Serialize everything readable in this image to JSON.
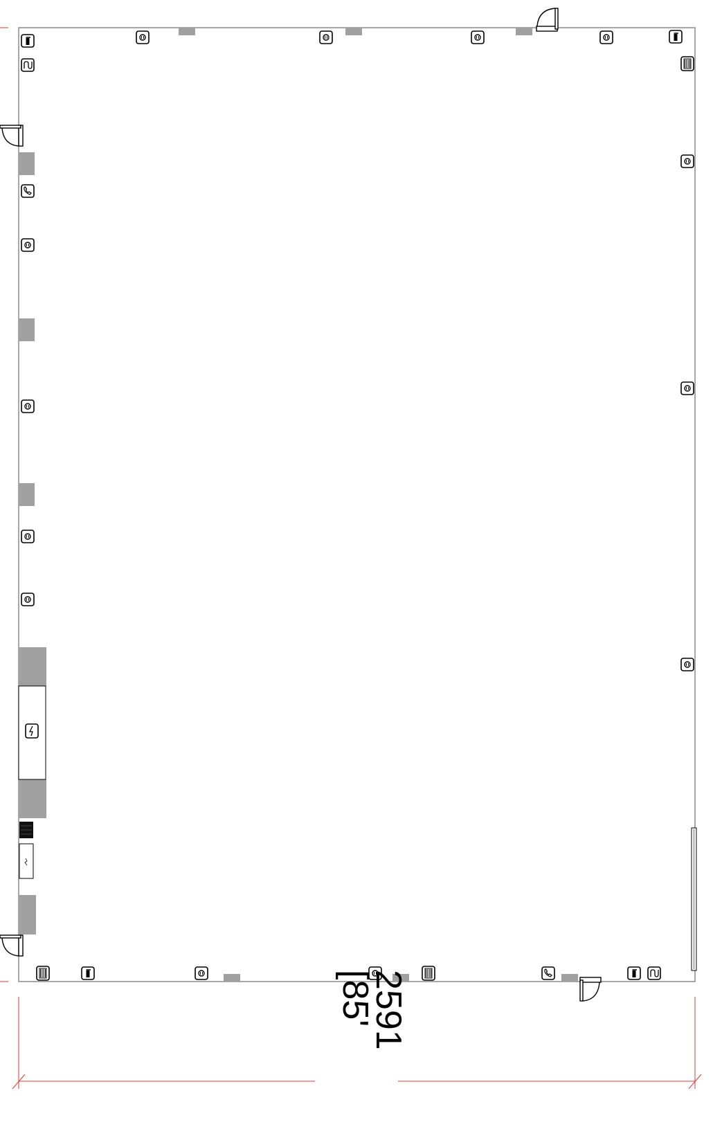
{
  "plan": {
    "dimension": {
      "primary": "2591",
      "secondary": "[85'"
    },
    "symbols": {
      "outlets": [
        {
          "wall": "top",
          "label": "outlet"
        },
        {
          "wall": "top",
          "label": "outlet"
        },
        {
          "wall": "top",
          "label": "outlet"
        },
        {
          "wall": "top",
          "label": "outlet"
        },
        {
          "wall": "left",
          "label": "outlet"
        },
        {
          "wall": "left",
          "label": "outlet"
        },
        {
          "wall": "left",
          "label": "outlet"
        },
        {
          "wall": "left",
          "label": "outlet"
        },
        {
          "wall": "right",
          "label": "outlet"
        },
        {
          "wall": "right",
          "label": "outlet"
        },
        {
          "wall": "right",
          "label": "outlet"
        },
        {
          "wall": "bottom",
          "label": "outlet"
        },
        {
          "wall": "bottom",
          "label": "outlet"
        }
      ],
      "extinguishers": 4,
      "radiators": 4,
      "phones": 2,
      "hoses": 2,
      "electric_panel": 1,
      "doors": 4
    }
  }
}
